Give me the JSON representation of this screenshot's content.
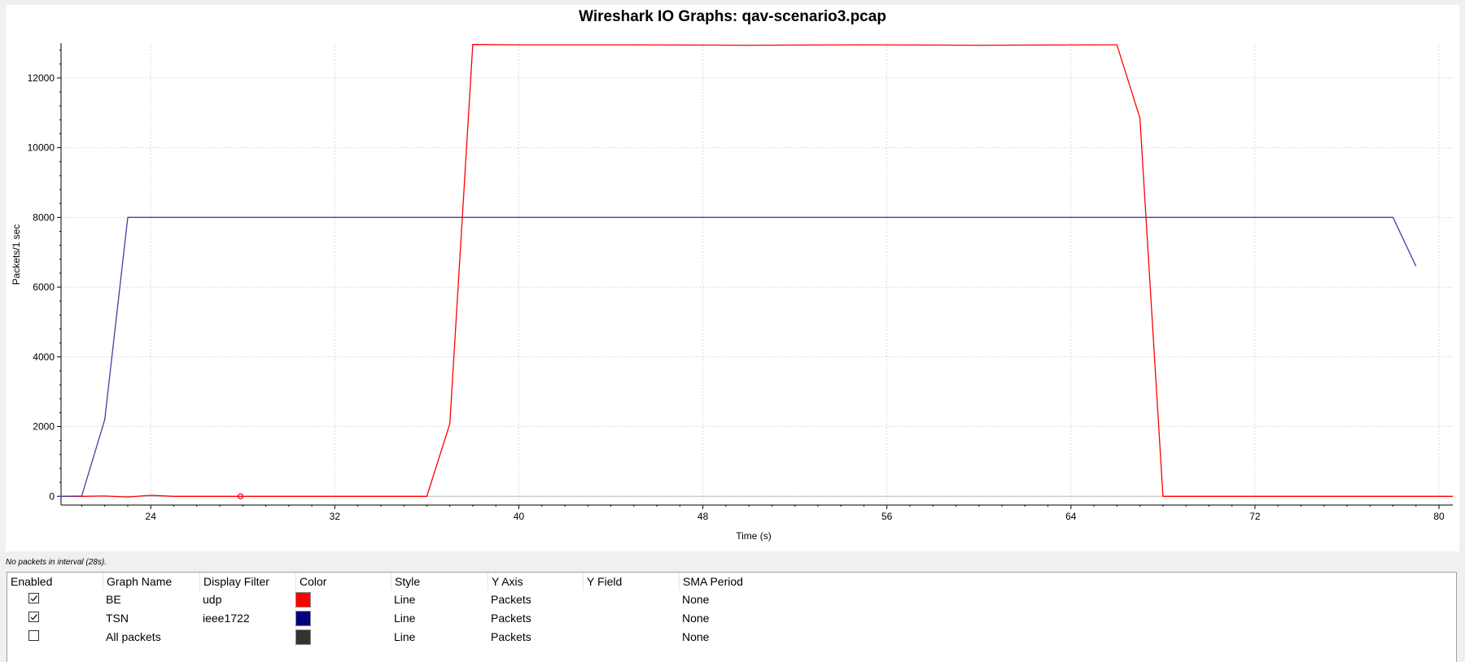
{
  "window": {
    "title": "Wireshark IO Graphs: qav-scenario3.pcap"
  },
  "status_text": "No packets in interval (28s).",
  "table": {
    "columns": [
      "Enabled",
      "Graph Name",
      "Display Filter",
      "Color",
      "Style",
      "Y Axis",
      "Y Field",
      "SMA Period"
    ],
    "rows": [
      {
        "enabled": true,
        "name": "BE",
        "filter": "udp",
        "color": "#ff0000",
        "style": "Line",
        "y_axis": "Packets",
        "y_field": "",
        "sma": "None"
      },
      {
        "enabled": true,
        "name": "TSN",
        "filter": "ieee1722",
        "color": "#000080",
        "style": "Line",
        "y_axis": "Packets",
        "y_field": "",
        "sma": "None"
      },
      {
        "enabled": false,
        "name": "All packets",
        "filter": "",
        "color": "#333333",
        "style": "Line",
        "y_axis": "Packets",
        "y_field": "",
        "sma": "None"
      }
    ]
  },
  "chart_data": {
    "type": "line",
    "title": "Wireshark IO Graphs: qav-scenario3.pcap",
    "xlabel": "Time (s)",
    "ylabel": "Packets/1 sec",
    "xlim": [
      20.1,
      80.6
    ],
    "ylim": [
      -250,
      13000
    ],
    "x_ticks": [
      24,
      32,
      40,
      48,
      56,
      64,
      72,
      80
    ],
    "y_ticks": [
      0,
      2000,
      4000,
      6000,
      8000,
      10000,
      12000
    ],
    "grid": true,
    "series": [
      {
        "name": "BE",
        "color": "#ff0000",
        "points": [
          [
            20,
            0
          ],
          [
            21,
            0
          ],
          [
            22,
            10
          ],
          [
            23,
            -20
          ],
          [
            24,
            30
          ],
          [
            25,
            0
          ],
          [
            26,
            0
          ],
          [
            27,
            0
          ],
          [
            28,
            0
          ],
          [
            29,
            0
          ],
          [
            30,
            0
          ],
          [
            31,
            0
          ],
          [
            32,
            0
          ],
          [
            33,
            0
          ],
          [
            34,
            0
          ],
          [
            35,
            0
          ],
          [
            36,
            0
          ],
          [
            37,
            2080
          ],
          [
            38,
            12960
          ],
          [
            40,
            12950
          ],
          [
            45,
            12950
          ],
          [
            50,
            12940
          ],
          [
            55,
            12950
          ],
          [
            60,
            12940
          ],
          [
            65,
            12950
          ],
          [
            66,
            12950
          ],
          [
            67,
            10850
          ],
          [
            68,
            0
          ],
          [
            69,
            0
          ],
          [
            70,
            0
          ],
          [
            75,
            0
          ],
          [
            80,
            0
          ],
          [
            80.6,
            0
          ]
        ]
      },
      {
        "name": "TSN",
        "color": "#4040a0",
        "points": [
          [
            20,
            0
          ],
          [
            21,
            10
          ],
          [
            22,
            2200
          ],
          [
            23,
            8000
          ],
          [
            24,
            8000
          ],
          [
            30,
            8000
          ],
          [
            40,
            8000
          ],
          [
            50,
            8000
          ],
          [
            60,
            8000
          ],
          [
            70,
            8000
          ],
          [
            78,
            8000
          ],
          [
            79,
            6600
          ]
        ]
      }
    ],
    "marker": {
      "x": 27.9,
      "y": 0,
      "color": "#ff0000"
    }
  }
}
